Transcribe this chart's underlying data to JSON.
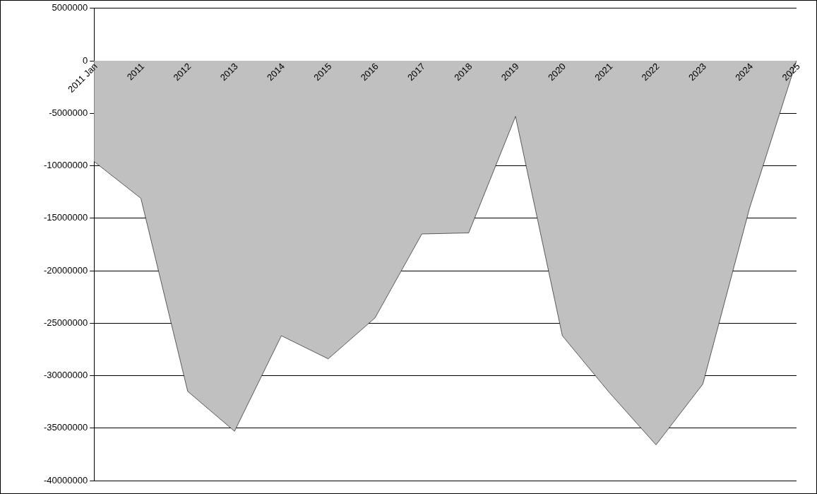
{
  "chart_data": {
    "type": "area",
    "categories": [
      "2011 Jan",
      "2011",
      "2012",
      "2013",
      "2014",
      "2015",
      "2016",
      "2017",
      "2018",
      "2019",
      "2020",
      "2021",
      "2022",
      "2023",
      "2024",
      "2025"
    ],
    "values": [
      -9600000,
      -13100000,
      -31500000,
      -35300000,
      -26200000,
      -28400000,
      -24500000,
      -16500000,
      -16400000,
      -5300000,
      -26200000,
      -31600000,
      -36600000,
      -30800000,
      -14000000,
      0
    ],
    "color": "#c0c0c0",
    "ylim": [
      -40000000,
      5000000
    ],
    "yticks": [
      -40000000,
      -35000000,
      -30000000,
      -25000000,
      -20000000,
      -15000000,
      -10000000,
      -5000000,
      0,
      5000000
    ],
    "grid": "y",
    "marker": "none"
  }
}
